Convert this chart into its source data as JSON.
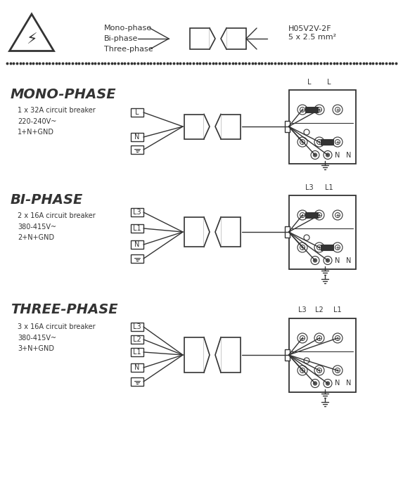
{
  "bg_color": "#ffffff",
  "line_color": "#333333",
  "title_mono": "MONO-PHASE",
  "title_bi": "BI-PHASE",
  "title_three": "THREE-PHASE",
  "subtitle_mono": "1 x 32A circuit breaker\n220-240V~\n1+N+GND",
  "subtitle_bi": "2 x 16A circuit breaker\n380-415V~\n2+N+GND",
  "subtitle_three": "3 x 16A circuit breaker\n380-415V~\n3+N+GND",
  "cable_label": "H05V2V-2F\n5 x 2.5 mm²",
  "legend_labels": [
    "Mono-phase",
    "Bi-phase",
    "Three-phase"
  ]
}
